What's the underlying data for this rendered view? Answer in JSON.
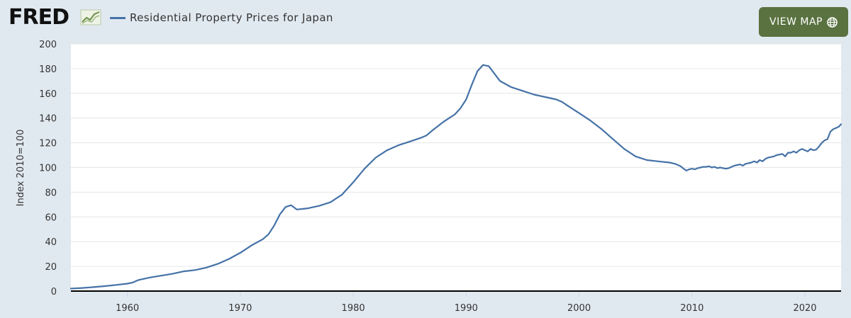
{
  "header": {
    "logo_text": "FRED",
    "view_map_label": "VIEW MAP"
  },
  "icons": {
    "logo_graph": "line-graph-icon",
    "view_map": "globe-icon"
  },
  "colors": {
    "series": "#4572a7",
    "button": "#5a7240",
    "background": "#e1e9f0",
    "plot_bg": "#ffffff"
  },
  "chart_data": {
    "type": "line",
    "title": "",
    "xlabel": "",
    "ylabel": "Index 2010=100",
    "ylim": [
      0,
      200
    ],
    "xlim": [
      1955,
      2023.2
    ],
    "yticks": [
      0,
      20,
      40,
      60,
      80,
      100,
      120,
      140,
      160,
      180,
      200
    ],
    "xticks": [
      1960,
      1970,
      1980,
      1990,
      2000,
      2010,
      2020
    ],
    "grid": "horizontal",
    "legend": "top-left",
    "series": [
      {
        "name": "Residential Property Prices for Japan",
        "x": [
          1955,
          1956,
          1957,
          1958,
          1959,
          1960,
          1960.5,
          1961,
          1962,
          1963,
          1964,
          1965,
          1966,
          1967,
          1968,
          1969,
          1970,
          1971,
          1972,
          1972.5,
          1973,
          1973.5,
          1974,
          1974.5,
          1975,
          1976,
          1977,
          1978,
          1978.5,
          1979,
          1980,
          1981,
          1982,
          1983,
          1984,
          1985,
          1986,
          1986.5,
          1987,
          1988,
          1988.5,
          1989,
          1989.5,
          1990,
          1990.5,
          1991,
          1991.5,
          1992,
          1993,
          1994,
          1995,
          1996,
          1997,
          1998,
          1998.5,
          1999,
          2000,
          2001,
          2002,
          2003,
          2004,
          2005,
          2006,
          2007,
          2008,
          2008.5,
          2009,
          2009.25,
          2009.5,
          2009.75,
          2010,
          2010.25,
          2010.5,
          2010.75,
          2011,
          2011.25,
          2011.5,
          2011.75,
          2012,
          2012.25,
          2012.5,
          2012.75,
          2013,
          2013.25,
          2013.5,
          2013.75,
          2014,
          2014.25,
          2014.5,
          2014.75,
          2015,
          2015.25,
          2015.5,
          2015.75,
          2016,
          2016.25,
          2016.5,
          2016.75,
          2017,
          2017.25,
          2017.5,
          2017.75,
          2018,
          2018.25,
          2018.5,
          2018.75,
          2019,
          2019.25,
          2019.5,
          2019.75,
          2020,
          2020.25,
          2020.5,
          2020.75,
          2021,
          2021.25,
          2021.5,
          2021.75,
          2022,
          2022.25,
          2022.5,
          2022.75,
          2023,
          2023.2
        ],
        "y": [
          2,
          2.5,
          3.2,
          4,
          5,
          6,
          7,
          9,
          11,
          12.5,
          14,
          16,
          17,
          19,
          22,
          26,
          31,
          37,
          42,
          46,
          53,
          62,
          68,
          69.5,
          66,
          67,
          69,
          72,
          75,
          78,
          88,
          99,
          108,
          114,
          118,
          121,
          124,
          126,
          130,
          137,
          140,
          143,
          148,
          155,
          167,
          178,
          183,
          182,
          170,
          165,
          162,
          159,
          157,
          155,
          153,
          150,
          144,
          138,
          131,
          123,
          115,
          109,
          106,
          105,
          104,
          103,
          101,
          99,
          97.5,
          98.5,
          99,
          98.5,
          99.5,
          100,
          100.5,
          100.5,
          101,
          100,
          100.5,
          99.5,
          100,
          99.5,
          99,
          99.5,
          100.5,
          101.5,
          102,
          102.5,
          101.5,
          103,
          103.5,
          104,
          105,
          104,
          106,
          105,
          107,
          108,
          108.5,
          109,
          110,
          110.5,
          111,
          109,
          112,
          112,
          113,
          112,
          114,
          115,
          114,
          113,
          115,
          114,
          114.5,
          117,
          120,
          122,
          123,
          129,
          131,
          132,
          133,
          135
        ]
      }
    ]
  }
}
